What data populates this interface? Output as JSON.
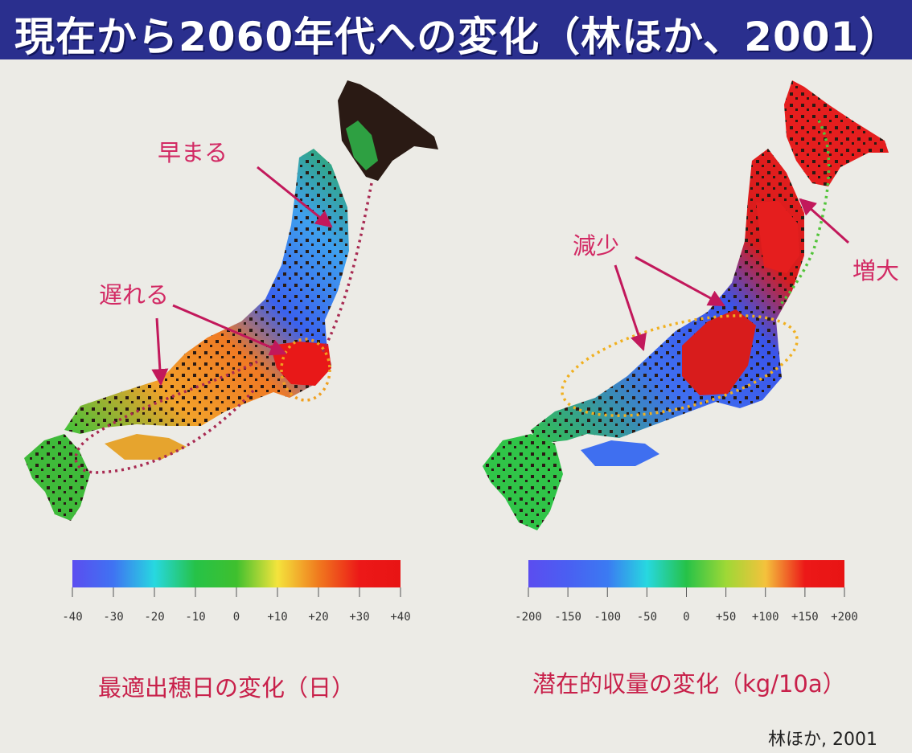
{
  "title": "現在から2060年代への変化（林ほか、2001）",
  "citation": "林ほか, 2001",
  "colors": {
    "title_bg": "#2a2f8e",
    "annotation": "#d22a64"
  },
  "left_map": {
    "annotations": {
      "earlier": "早まる",
      "later": "遅れる"
    },
    "scale": {
      "ticks": [
        "-40",
        "-30",
        "-20",
        "-10",
        "0",
        "+10",
        "+20",
        "+30",
        "+40"
      ],
      "range": [
        -40,
        40
      ],
      "colors": [
        "#5b4df0",
        "#3f73f2",
        "#27d8e0",
        "#26c248",
        "#3fc02e",
        "#f4e43c",
        "#f07a1e",
        "#ec1818",
        "#e81414"
      ]
    },
    "caption": "最適出穂日の変化（日）"
  },
  "right_map": {
    "annotations": {
      "decrease": "減少",
      "increase": "増大"
    },
    "scale": {
      "ticks": [
        "-200",
        "-150",
        "-100",
        "-50",
        "0",
        "+50",
        "+100",
        "+150",
        "+200"
      ],
      "range": [
        -200,
        200
      ],
      "colors": [
        "#5b4df0",
        "#4a5ff2",
        "#3b7af2",
        "#27d8e0",
        "#26c248",
        "#9ed836",
        "#f4c23c",
        "#ec1818",
        "#e81414"
      ]
    },
    "caption": "潜在的収量の変化（kg/10a）"
  }
}
